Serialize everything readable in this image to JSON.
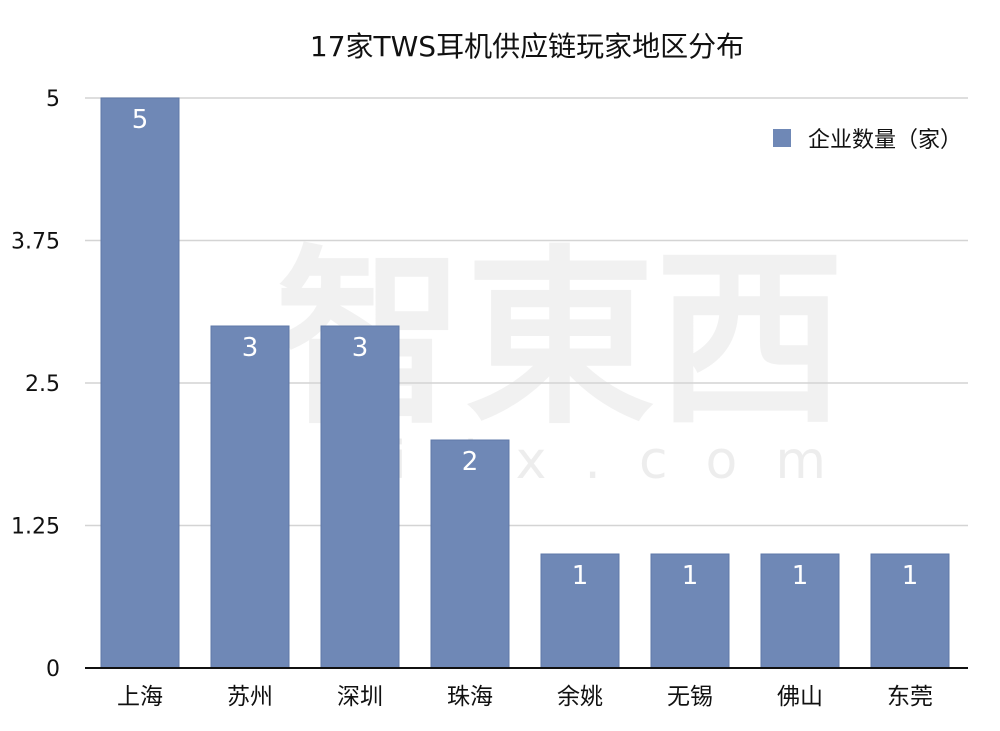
{
  "chart_data": {
    "type": "bar",
    "title": "17家TWS耳机供应链玩家地区分布",
    "categories": [
      "上海",
      "苏州",
      "深圳",
      "珠海",
      "余姚",
      "无锡",
      "佛山",
      "东莞"
    ],
    "series": [
      {
        "name": "企业数量（家）",
        "values": [
          5,
          3,
          3,
          2,
          1,
          1,
          1,
          1
        ]
      }
    ],
    "data_labels": [
      "5",
      "3",
      "3",
      "2",
      "1",
      "1",
      "1",
      "1"
    ],
    "xlabel": "",
    "ylabel": "",
    "ylim": [
      0,
      5
    ],
    "yticks": [
      0,
      1.25,
      2.5,
      3.75,
      5
    ],
    "ytick_labels": [
      "0",
      "1.25",
      "2.5",
      "3.75",
      "5"
    ],
    "grid": true,
    "legend_position": "top-right",
    "colors": {
      "bar": "#6f88b6",
      "bar_edge": "#5f79a8",
      "grid": "#d4d4d4",
      "axis": "#111111"
    }
  },
  "watermark": {
    "main": "智東西",
    "sub": "zhidx.com"
  }
}
